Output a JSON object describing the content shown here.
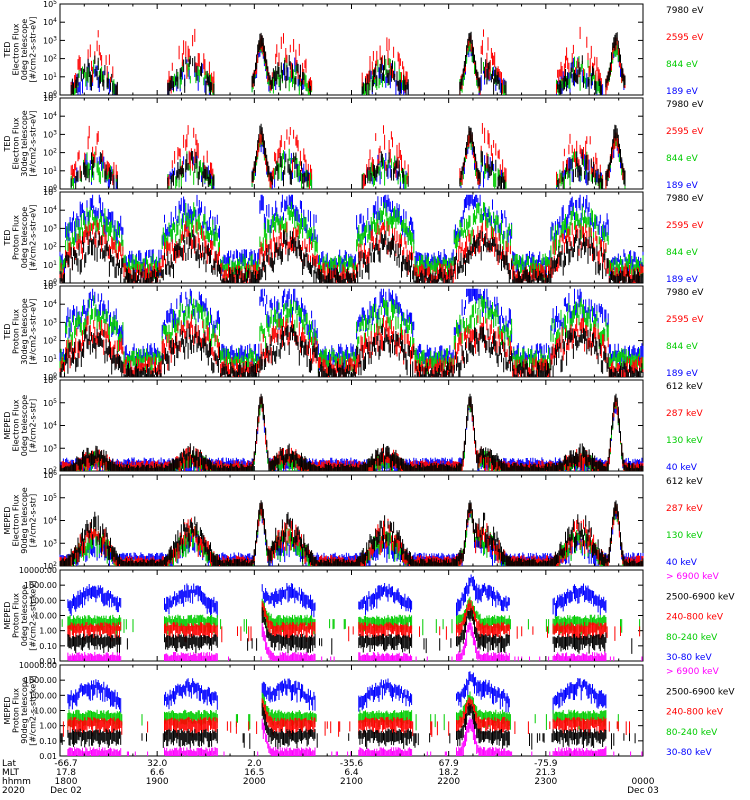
{
  "chart_data": [
    {
      "type": "line",
      "title": "TED Electron Flux 0deg telescope",
      "ylabel": [
        "TED",
        "Electron Flux",
        "0deg telescope",
        "[#/cm2-s-str-eV]"
      ],
      "yscale": "log",
      "ylim": [
        1,
        100000
      ],
      "y_ticks": [
        1,
        10,
        100,
        1000,
        10000,
        100000
      ],
      "legend": [
        {
          "name": "7980 eV",
          "color": "#000000"
        },
        {
          "name": "2595 eV",
          "color": "#ff0000"
        },
        {
          "name": "844 eV",
          "color": "#00cc00"
        },
        {
          "name": "189 eV",
          "color": "#0000ff"
        }
      ]
    },
    {
      "type": "line",
      "title": "TED Electron Flux 30deg telescope",
      "ylabel": [
        "TED",
        "Electron Flux",
        "30deg telescope",
        "[#/cm2-s-str-eV]"
      ],
      "yscale": "log",
      "ylim": [
        1,
        100000
      ],
      "y_ticks": [
        1,
        10,
        100,
        1000,
        10000,
        100000
      ],
      "legend": [
        {
          "name": "7980 eV",
          "color": "#000000"
        },
        {
          "name": "2595 eV",
          "color": "#ff0000"
        },
        {
          "name": "844 eV",
          "color": "#00cc00"
        },
        {
          "name": "189 eV",
          "color": "#0000ff"
        }
      ]
    },
    {
      "type": "line",
      "title": "TED Proton Flux 0deg telescope",
      "ylabel": [
        "TED",
        "Proton Flux",
        "0deg telescope",
        "[#/cm2-s-str-eV]"
      ],
      "yscale": "log",
      "ylim": [
        1,
        100000
      ],
      "y_ticks": [
        1,
        10,
        100,
        1000,
        10000,
        100000
      ],
      "legend": [
        {
          "name": "7980 eV",
          "color": "#000000"
        },
        {
          "name": "2595 eV",
          "color": "#ff0000"
        },
        {
          "name": "844 eV",
          "color": "#00cc00"
        },
        {
          "name": "189 eV",
          "color": "#0000ff"
        }
      ]
    },
    {
      "type": "line",
      "title": "TED Proton Flux 30deg telescope",
      "ylabel": [
        "TED",
        "Proton Flux",
        "30deg telescope",
        "[#/cm2-s-str-eV]"
      ],
      "yscale": "log",
      "ylim": [
        1,
        100000
      ],
      "y_ticks": [
        1,
        10,
        100,
        1000,
        10000,
        100000
      ],
      "legend": [
        {
          "name": "7980 eV",
          "color": "#000000"
        },
        {
          "name": "2595 eV",
          "color": "#ff0000"
        },
        {
          "name": "844 eV",
          "color": "#00cc00"
        },
        {
          "name": "189 eV",
          "color": "#0000ff"
        }
      ]
    },
    {
      "type": "line",
      "title": "MEPED Electron Flux 0deg telescope",
      "ylabel": [
        "MEPED",
        "Electron Flux",
        "0deg telescope",
        "[#/cm2-s-str]"
      ],
      "yscale": "log",
      "ylim": [
        100,
        1000000
      ],
      "y_ticks": [
        100,
        1000,
        10000,
        100000,
        1000000
      ],
      "legend": [
        {
          "name": "612 keV",
          "color": "#000000"
        },
        {
          "name": "287 keV",
          "color": "#ff0000"
        },
        {
          "name": "130 keV",
          "color": "#00cc00"
        },
        {
          "name": "40 keV",
          "color": "#0000ff"
        }
      ]
    },
    {
      "type": "line",
      "title": "MEPED Electron Flux 90deg telescope",
      "ylabel": [
        "MEPED",
        "Electron Flux",
        "90deg telescope",
        "[#/cm2-s-str]"
      ],
      "yscale": "log",
      "ylim": [
        100,
        1000000
      ],
      "y_ticks": [
        100,
        1000,
        10000,
        100000,
        1000000
      ],
      "legend": [
        {
          "name": "612 keV",
          "color": "#000000"
        },
        {
          "name": "287 keV",
          "color": "#ff0000"
        },
        {
          "name": "130 keV",
          "color": "#00cc00"
        },
        {
          "name": "40 keV",
          "color": "#0000ff"
        }
      ]
    },
    {
      "type": "line",
      "title": "MEPED Proton Flux 0deg telescope",
      "ylabel": [
        "MEPED",
        "Proton Flux",
        "0deg telescope",
        "[#/cm2-s-str-keV]"
      ],
      "yscale": "log",
      "ylim": [
        0.01,
        10000
      ],
      "y_ticks": [
        "0.01",
        "0.10",
        "1.00",
        "10.00",
        "100.00",
        "1000.00",
        "10000.00"
      ],
      "legend": [
        {
          "name": "> 6900 keV",
          "color": "#ff00ff"
        },
        {
          "name": "2500-6900 keV",
          "color": "#000000"
        },
        {
          "name": "240-800 keV",
          "color": "#ff0000"
        },
        {
          "name": "80-240 keV",
          "color": "#00cc00"
        },
        {
          "name": "30-80 keV",
          "color": "#0000ff"
        }
      ]
    },
    {
      "type": "line",
      "title": "MEPED Proton Flux 90deg telescope",
      "ylabel": [
        "MEPED",
        "Proton Flux",
        "90deg telescope",
        "[#/cm2-s-str-keV]"
      ],
      "yscale": "log",
      "ylim": [
        0.01,
        10000
      ],
      "y_ticks": [
        "0.01",
        "0.10",
        "1.00",
        "10.00",
        "100.00",
        "1000.00",
        "10000.00"
      ],
      "legend": [
        {
          "name": "> 6900 keV",
          "color": "#ff00ff"
        },
        {
          "name": "2500-6900 keV",
          "color": "#000000"
        },
        {
          "name": "240-800 keV",
          "color": "#ff0000"
        },
        {
          "name": "80-240 keV",
          "color": "#00cc00"
        },
        {
          "name": "30-80 keV",
          "color": "#0000ff"
        }
      ]
    }
  ],
  "x_axis": {
    "row_labels": [
      "Lat",
      "MLT",
      "hhmm",
      "2020"
    ],
    "columns": [
      {
        "hours": 0,
        "lat": "-66.7",
        "mlt": "17.8",
        "hhmm": "1800",
        "date": "Dec 02"
      },
      {
        "hours": 1,
        "lat": "32.0",
        "mlt": "6.6",
        "hhmm": "1900",
        "date": ""
      },
      {
        "hours": 2,
        "lat": "2.0",
        "mlt": "16.5",
        "hhmm": "2000",
        "date": ""
      },
      {
        "hours": 3,
        "lat": "-35.6",
        "mlt": "6.4",
        "hhmm": "2100",
        "date": ""
      },
      {
        "hours": 4,
        "lat": "67.9",
        "mlt": "18.2",
        "hhmm": "2200",
        "date": ""
      },
      {
        "hours": 5,
        "lat": "-75.9",
        "mlt": "21.3",
        "hhmm": "2300",
        "date": ""
      },
      {
        "hours": 6,
        "lat": "",
        "mlt": "",
        "hhmm": "0000",
        "date": "Dec 03"
      }
    ],
    "xlim_hours": [
      0,
      6
    ]
  }
}
